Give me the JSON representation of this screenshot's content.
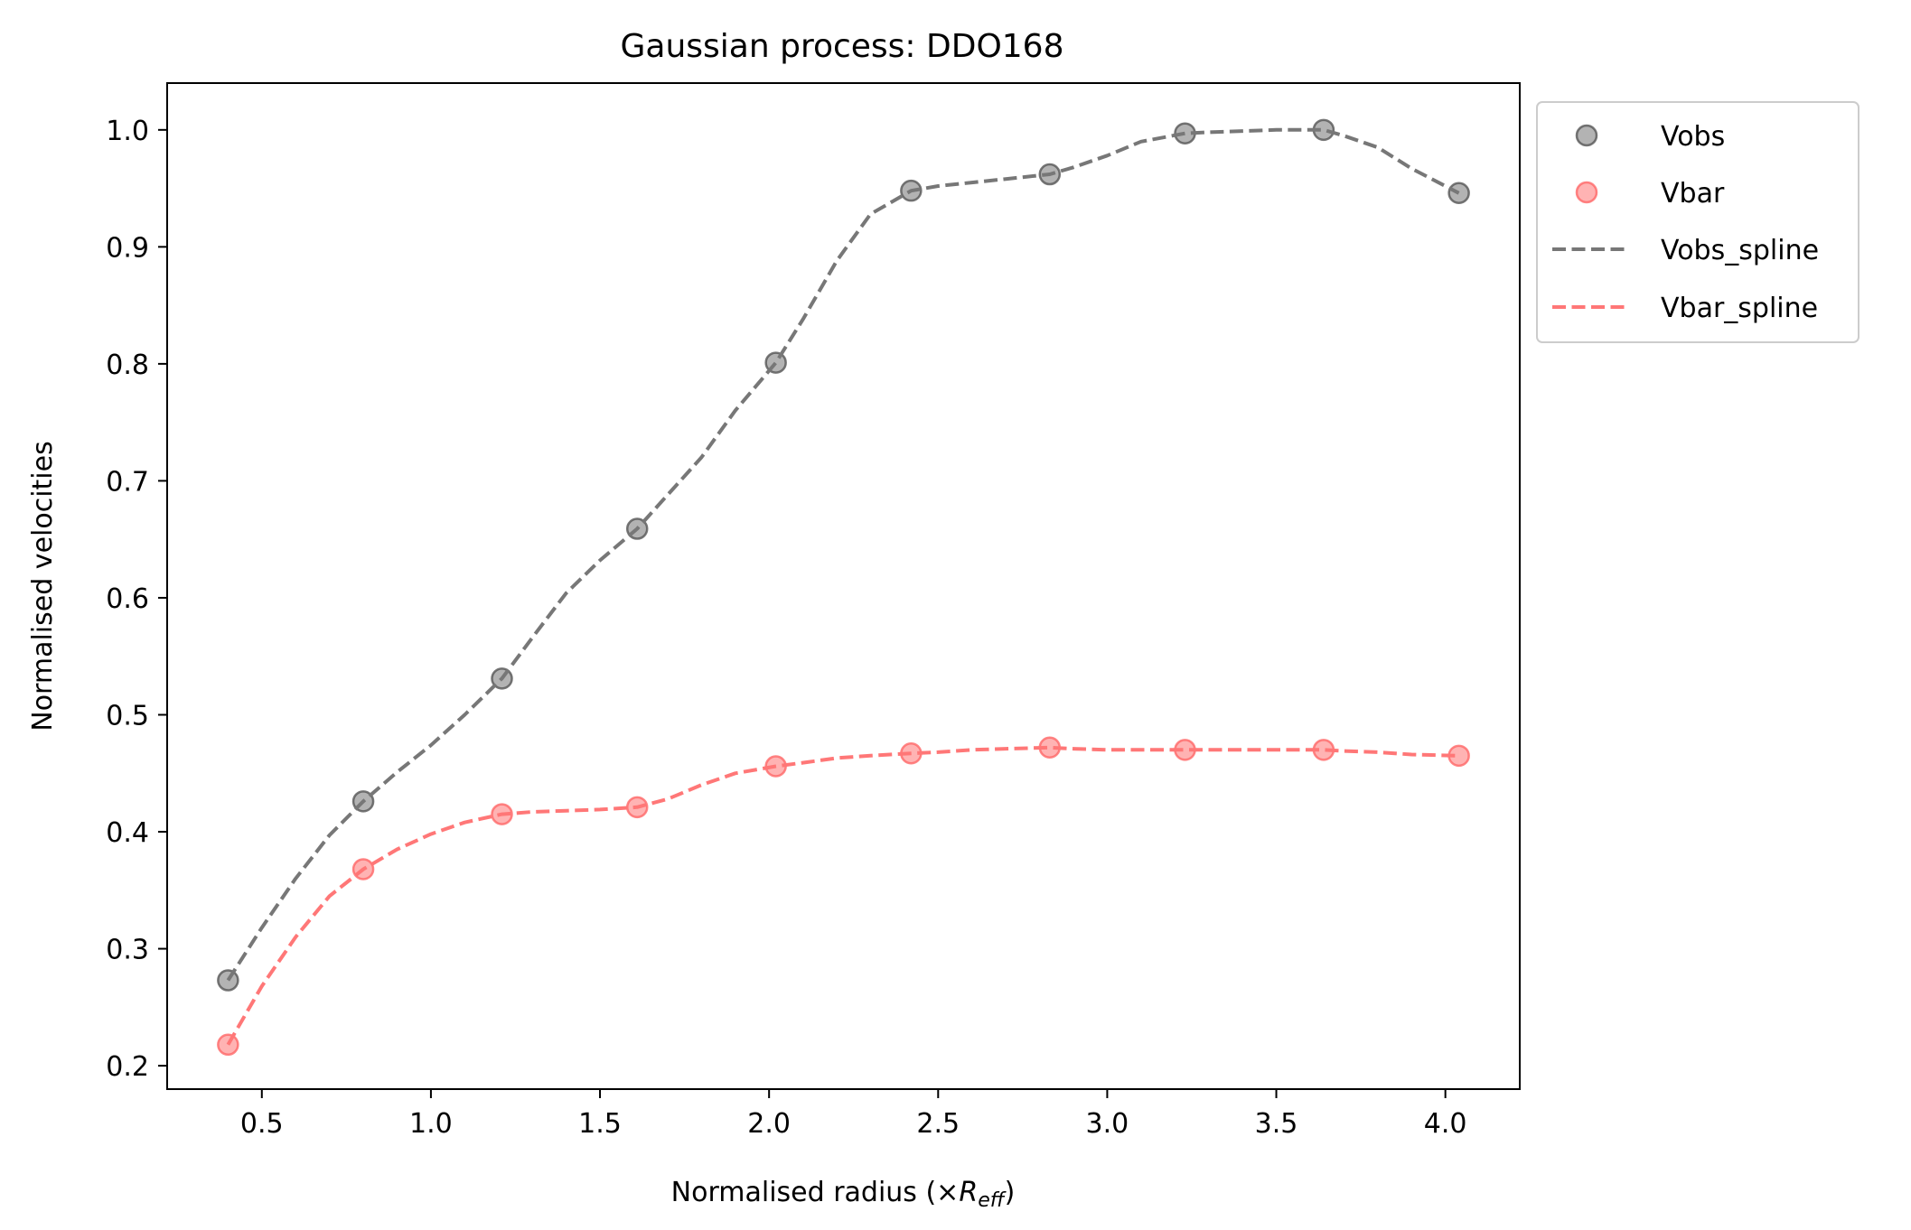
{
  "chart_data": {
    "type": "scatter",
    "title": "Gaussian process: DDO168",
    "xlabel": "Normalised radius (×",
    "xlabel_symbol": "R",
    "xlabel_subscript": "eff",
    "xlabel_suffix": ")",
    "ylabel": "Normalised velocities",
    "xlim": [
      0.22,
      4.22
    ],
    "ylim": [
      0.18,
      1.04
    ],
    "grid": false,
    "legend_position": "outside-top-right",
    "x_ticks": [
      0.5,
      1.0,
      1.5,
      2.0,
      2.5,
      3.0,
      3.5,
      4.0
    ],
    "x_tick_labels": [
      "0.5",
      "1.0",
      "1.5",
      "2.0",
      "2.5",
      "3.0",
      "3.5",
      "4.0"
    ],
    "y_ticks": [
      0.2,
      0.3,
      0.4,
      0.5,
      0.6,
      0.7,
      0.8,
      0.9,
      1.0
    ],
    "y_tick_labels": [
      "0.2",
      "0.3",
      "0.4",
      "0.5",
      "0.6",
      "0.7",
      "0.8",
      "0.9",
      "1.0"
    ],
    "x": [
      0.4,
      0.8,
      1.21,
      1.61,
      2.02,
      2.42,
      2.83,
      3.23,
      3.64,
      4.04
    ],
    "series": [
      {
        "name": "Vobs",
        "kind": "scatter",
        "color": "#808080",
        "edge_color": "#555555",
        "values": [
          0.273,
          0.426,
          0.531,
          0.659,
          0.801,
          0.948,
          0.962,
          0.997,
          1.0,
          0.946
        ]
      },
      {
        "name": "Vbar",
        "kind": "scatter",
        "color": "#ff8080",
        "edge_color": "#ff6666",
        "values": [
          0.218,
          0.368,
          0.415,
          0.421,
          0.456,
          0.467,
          0.472,
          0.47,
          0.47,
          0.465
        ]
      },
      {
        "name": "Vobs_spline",
        "kind": "line",
        "style": "dashed",
        "color": "#777777",
        "x": [
          0.4,
          0.5,
          0.6,
          0.7,
          0.8,
          0.9,
          1.0,
          1.1,
          1.21,
          1.3,
          1.4,
          1.5,
          1.61,
          1.7,
          1.8,
          1.9,
          2.02,
          2.1,
          2.2,
          2.3,
          2.42,
          2.5,
          2.6,
          2.7,
          2.83,
          2.9,
          3.0,
          3.1,
          3.23,
          3.3,
          3.4,
          3.5,
          3.64,
          3.7,
          3.8,
          3.9,
          4.04
        ],
        "values": [
          0.273,
          0.318,
          0.36,
          0.397,
          0.426,
          0.451,
          0.474,
          0.5,
          0.531,
          0.566,
          0.604,
          0.632,
          0.659,
          0.688,
          0.72,
          0.76,
          0.801,
          0.838,
          0.888,
          0.928,
          0.948,
          0.952,
          0.955,
          0.958,
          0.962,
          0.968,
          0.978,
          0.99,
          0.997,
          0.998,
          0.999,
          1.0,
          1.0,
          0.995,
          0.985,
          0.967,
          0.946
        ]
      },
      {
        "name": "Vbar_spline",
        "kind": "line",
        "style": "dashed",
        "color": "#ff7777",
        "x": [
          0.4,
          0.5,
          0.6,
          0.7,
          0.8,
          0.9,
          1.0,
          1.1,
          1.21,
          1.3,
          1.4,
          1.5,
          1.61,
          1.7,
          1.8,
          1.9,
          2.02,
          2.1,
          2.2,
          2.3,
          2.42,
          2.5,
          2.6,
          2.7,
          2.83,
          2.9,
          3.0,
          3.1,
          3.23,
          3.3,
          3.4,
          3.5,
          3.64,
          3.7,
          3.8,
          3.9,
          4.04
        ],
        "values": [
          0.218,
          0.268,
          0.31,
          0.345,
          0.368,
          0.385,
          0.398,
          0.408,
          0.415,
          0.417,
          0.418,
          0.419,
          0.421,
          0.428,
          0.44,
          0.45,
          0.456,
          0.459,
          0.463,
          0.465,
          0.467,
          0.468,
          0.47,
          0.471,
          0.472,
          0.471,
          0.47,
          0.47,
          0.47,
          0.47,
          0.47,
          0.47,
          0.47,
          0.469,
          0.468,
          0.466,
          0.465
        ]
      }
    ]
  }
}
